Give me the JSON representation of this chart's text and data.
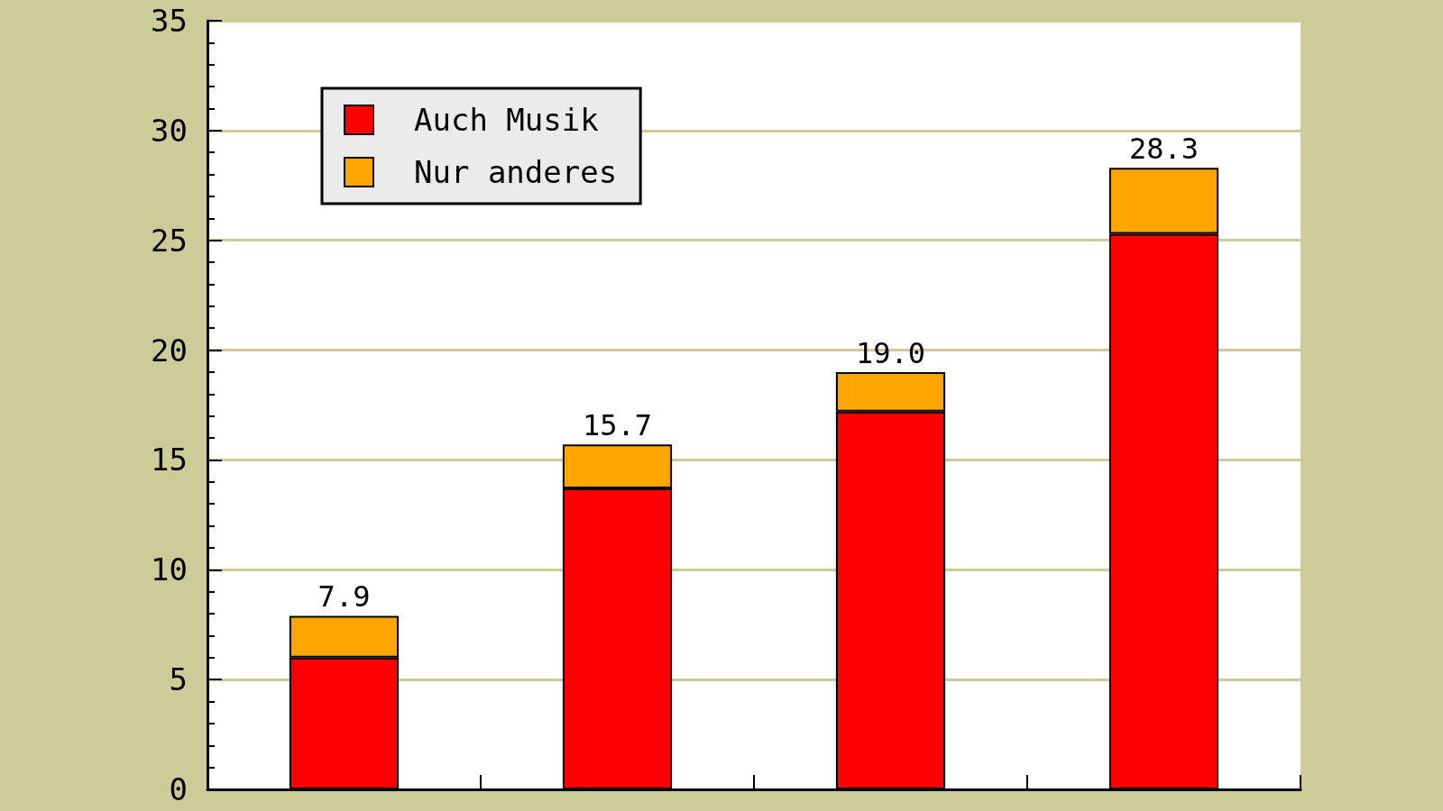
{
  "chart_data": {
    "type": "bar",
    "stacked": true,
    "categories": [
      null,
      null,
      null,
      null
    ],
    "series": [
      {
        "name": "Auch Musik",
        "color": "#ff0000",
        "values": [
          6.0,
          13.7,
          17.2,
          25.3
        ]
      },
      {
        "name": "Nur anderes",
        "color": "#ffa500",
        "values": [
          1.9,
          2.0,
          1.8,
          3.0
        ]
      }
    ],
    "totals": [
      "7.9",
      "15.7",
      "19.0",
      "28.3"
    ],
    "ylim": [
      0,
      35
    ],
    "yticks": [
      0,
      5,
      10,
      15,
      20,
      25,
      30,
      35
    ],
    "grid": "y",
    "legend": "top left"
  }
}
